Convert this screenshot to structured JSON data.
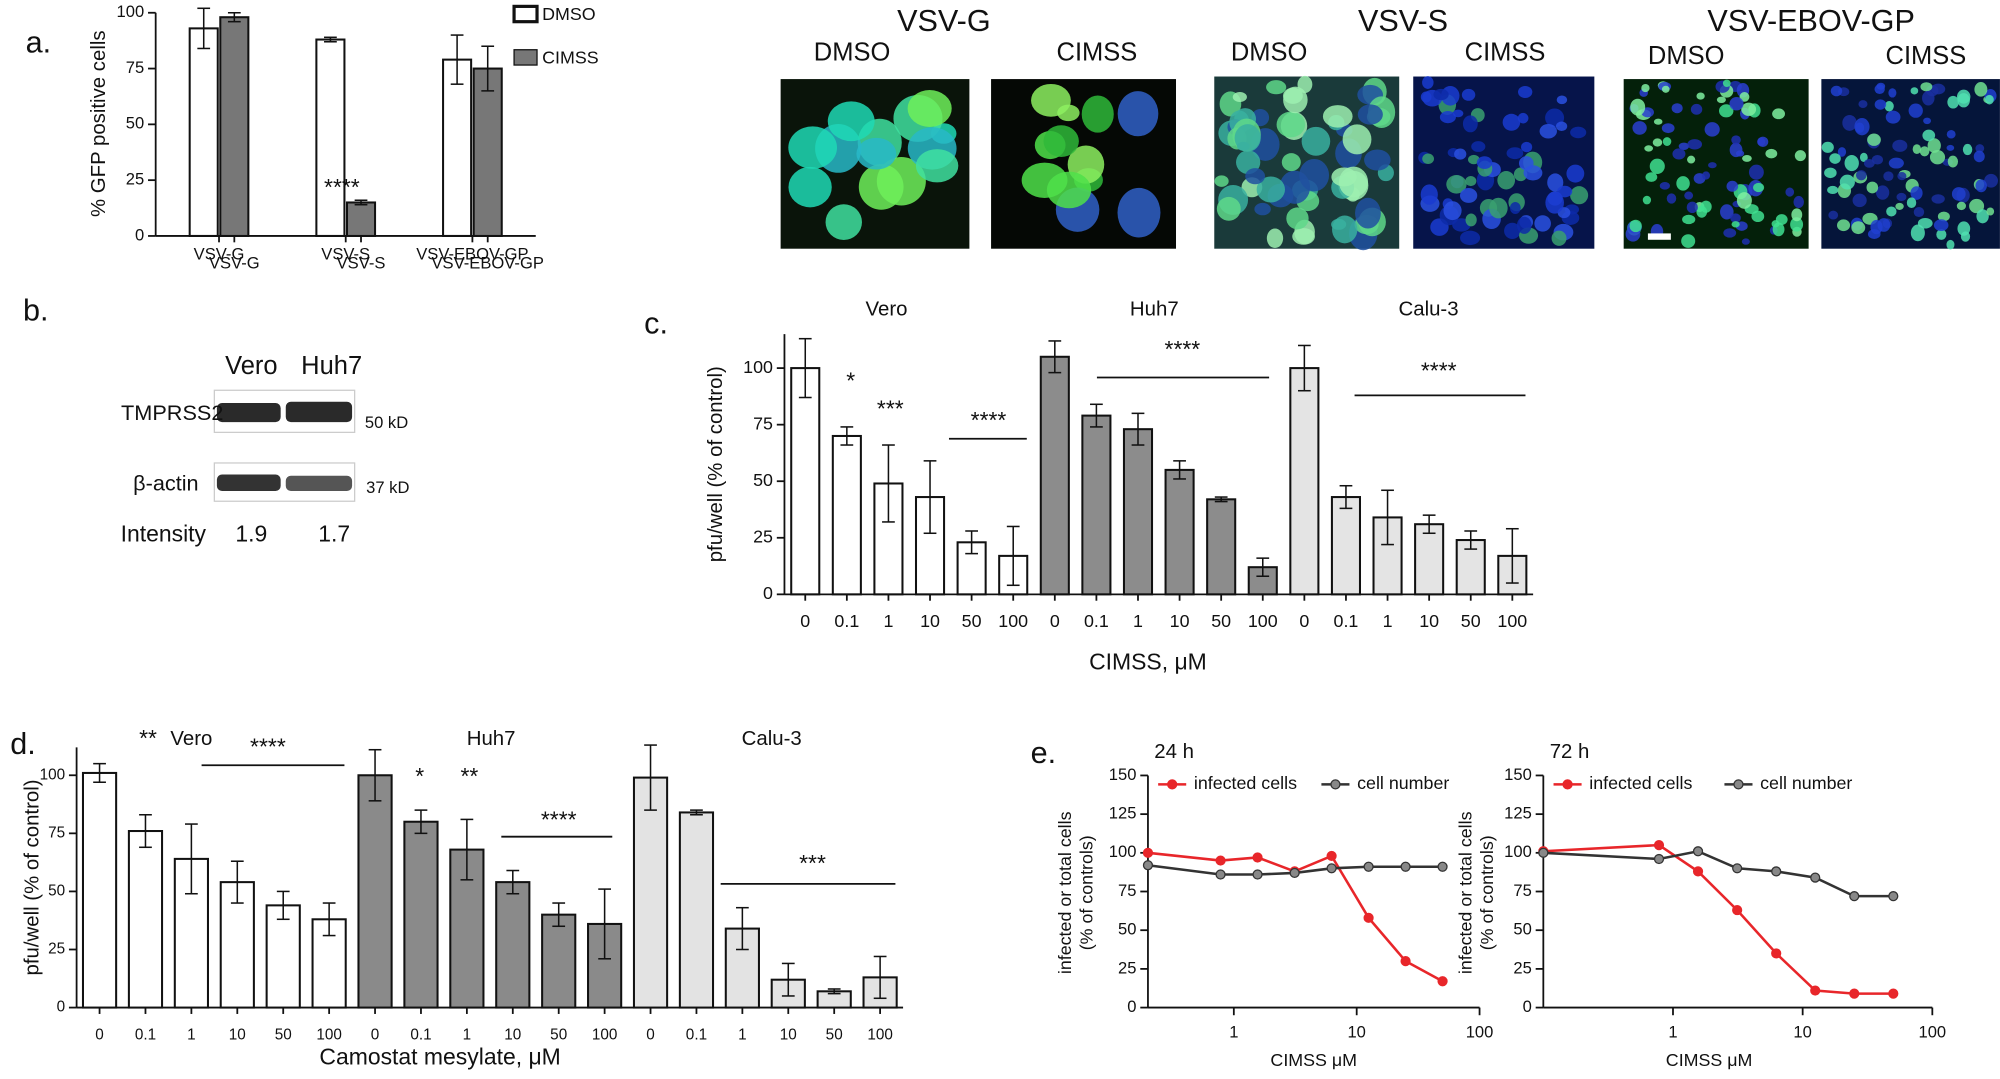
{
  "panel_labels": [
    "a.",
    "b.",
    "c.",
    "d.",
    "e."
  ],
  "images": {
    "groups": [
      {
        "title": "VSV-G",
        "panels": [
          "DMSO",
          "CIMSS"
        ]
      },
      {
        "title": "VSV-S",
        "panels": [
          "DMSO",
          "CIMSS"
        ]
      },
      {
        "title": "VSV-EBOV-GP",
        "panels": [
          "DMSO",
          "CIMSS"
        ]
      }
    ]
  },
  "blot": {
    "columns": [
      "Vero",
      "Huh7"
    ],
    "rows": [
      {
        "label": "TMPRSS2",
        "size": "50 kD"
      },
      {
        "label": "β-actin",
        "size": "37 kD"
      }
    ],
    "intensity": {
      "label": "Intensity",
      "values": [
        1.9,
        1.7
      ]
    }
  },
  "chart_data": [
    {
      "type": "bar",
      "layout": "grouped",
      "y_label": "% GFP positive cells",
      "categories": [
        "VSV-G",
        "VSV-S",
        "VSV-EBOV-GP"
      ],
      "series": [
        {
          "name": "DMSO",
          "color": "#ffffff",
          "values": [
            93,
            88,
            79
          ],
          "errors": [
            9,
            1,
            11
          ]
        },
        {
          "name": "CIMSS",
          "color": "#777777",
          "values": [
            98,
            15,
            75
          ],
          "errors": [
            2,
            1,
            10
          ]
        }
      ],
      "ylim": [
        0,
        100
      ],
      "yticks": [
        0,
        25,
        50,
        75,
        100
      ],
      "legend": "top-right",
      "annotations": [
        "****"
      ]
    },
    {
      "type": "bar",
      "layout": "sequential",
      "y_label": "pfu/well (% of control)",
      "x_label": "CIMSS, μM",
      "categories": [
        "0",
        "0.1",
        "1",
        "10",
        "50",
        "100"
      ],
      "series": [
        {
          "name": "Vero",
          "color": "#ffffff",
          "values": [
            100,
            70,
            49,
            43,
            23,
            17
          ],
          "errors": [
            13,
            4,
            17,
            16,
            5,
            13
          ]
        },
        {
          "name": "Huh7",
          "color": "#8c8c8c",
          "values": [
            105,
            79,
            73,
            55,
            42,
            12
          ],
          "errors": [
            7,
            5,
            7,
            4,
            1,
            4
          ]
        },
        {
          "name": "Calu-3",
          "color": "#e4e4e4",
          "values": [
            100,
            43,
            34,
            31,
            24,
            17
          ],
          "errors": [
            10,
            5,
            12,
            4,
            4,
            12
          ]
        }
      ],
      "ylim": [
        0,
        115
      ],
      "yticks": [
        0,
        25,
        50,
        75,
        100
      ],
      "annotations": [
        "*",
        "***",
        "****",
        "****",
        "****"
      ]
    },
    {
      "type": "bar",
      "layout": "sequential",
      "y_label": "pfu/well (% of control)",
      "x_label": "Camostat mesylate, μM",
      "categories": [
        "0",
        "0.1",
        "1",
        "10",
        "50",
        "100"
      ],
      "series": [
        {
          "name": "Vero",
          "color": "#ffffff",
          "values": [
            101,
            76,
            64,
            54,
            44,
            38
          ],
          "errors": [
            4,
            7,
            15,
            9,
            6,
            7
          ]
        },
        {
          "name": "Huh7",
          "color": "#8a8a8a",
          "values": [
            100,
            80,
            68,
            54,
            40,
            36
          ],
          "errors": [
            11,
            5,
            13,
            5,
            5,
            15
          ]
        },
        {
          "name": "Calu-3",
          "color": "#e3e3e3",
          "values": [
            99,
            84,
            34,
            12,
            7,
            13
          ],
          "errors": [
            14,
            1,
            9,
            7,
            1,
            9
          ]
        }
      ],
      "ylim": [
        0,
        112
      ],
      "yticks": [
        0,
        25,
        50,
        75,
        100
      ],
      "annotations": [
        "**",
        "****",
        "*",
        "**",
        "****",
        "***"
      ]
    },
    {
      "type": "line",
      "title": "24 h",
      "x_label": "CIMSS μM",
      "y_label": [
        "infected or total cells",
        "(% of controls)"
      ],
      "x": [
        0.2,
        0.78,
        1.56,
        3.125,
        6.25,
        12.5,
        25,
        50
      ],
      "xscale": "log",
      "xlim": [
        0.2,
        100
      ],
      "xticks": [
        1,
        10,
        100
      ],
      "ylim": [
        0,
        150
      ],
      "yticks": [
        0,
        25,
        50,
        75,
        100,
        125,
        150
      ],
      "series": [
        {
          "name": "infected cells",
          "color": "#e8262a",
          "values": [
            100,
            95,
            97,
            88,
            98,
            58,
            30,
            17
          ]
        },
        {
          "name": "cell number",
          "color": "#333333",
          "values": [
            92,
            86,
            86,
            87,
            90,
            91,
            91,
            91
          ]
        }
      ]
    },
    {
      "type": "line",
      "title": "72 h",
      "x_label": "CIMSS μM",
      "y_label": [
        "infected or total cells",
        "(% of controls)"
      ],
      "x": [
        0.1,
        0.78,
        1.56,
        3.125,
        6.25,
        12.5,
        25,
        50
      ],
      "xscale": "log",
      "xlim": [
        0.1,
        100
      ],
      "xticks": [
        1,
        10,
        100
      ],
      "ylim": [
        0,
        150
      ],
      "yticks": [
        0,
        25,
        50,
        75,
        100,
        125,
        150
      ],
      "series": [
        {
          "name": "infected cells",
          "color": "#e8262a",
          "values": [
            101,
            105,
            88,
            63,
            35,
            11,
            9,
            9
          ]
        },
        {
          "name": "cell number",
          "color": "#333333",
          "values": [
            100,
            96,
            101,
            90,
            88,
            84,
            72,
            72
          ]
        }
      ]
    }
  ]
}
